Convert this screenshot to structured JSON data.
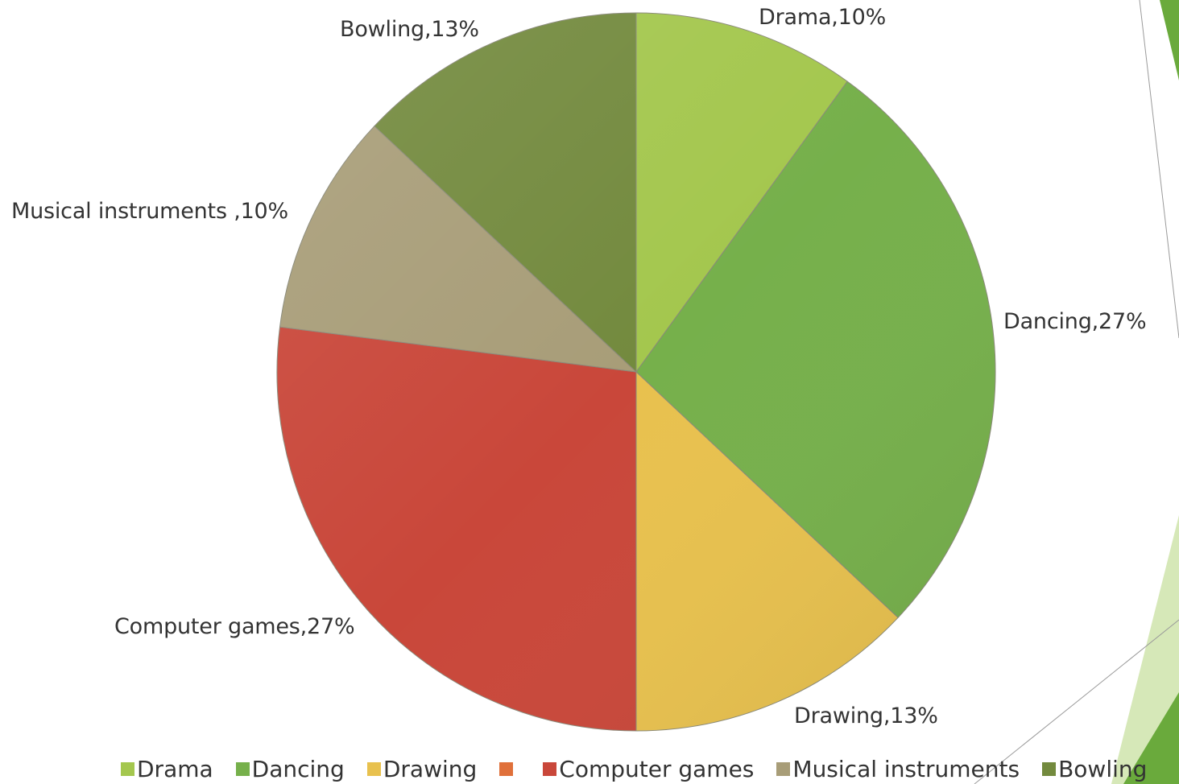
{
  "chart_data": {
    "type": "pie",
    "categories": [
      "Drama",
      "Dancing",
      "Drawing",
      "",
      "Computer games",
      "Musical instruments",
      "Bowling"
    ],
    "values": [
      10,
      27,
      13,
      0,
      27,
      10,
      13
    ],
    "unit": "%",
    "data_labels": [
      "Drama,10%",
      "Dancing,27%",
      "Drawing,13%",
      "",
      "Computer games,27%",
      "Musical instruments ,10%",
      "Bowling,13%"
    ],
    "colors": [
      "#a4c74e",
      "#76b04b",
      "#e8c14e",
      "#e0703a",
      "#c9473a",
      "#a89d78",
      "#738a3e"
    ],
    "legend_position": "bottom",
    "title": "",
    "start_angle_deg": 0,
    "direction": "clockwise"
  },
  "legend": {
    "items": [
      {
        "label": "Drama",
        "color": "#a4c74e"
      },
      {
        "label": "Dancing",
        "color": "#76b04b"
      },
      {
        "label": "Drawing",
        "color": "#e8c14e"
      },
      {
        "label": "",
        "color": "#e0703a"
      },
      {
        "label": "Computer games",
        "color": "#c9473a"
      },
      {
        "label": "Musical instruments",
        "color": "#a89d78"
      },
      {
        "label": "Bowling",
        "color": "#738a3e"
      }
    ]
  }
}
